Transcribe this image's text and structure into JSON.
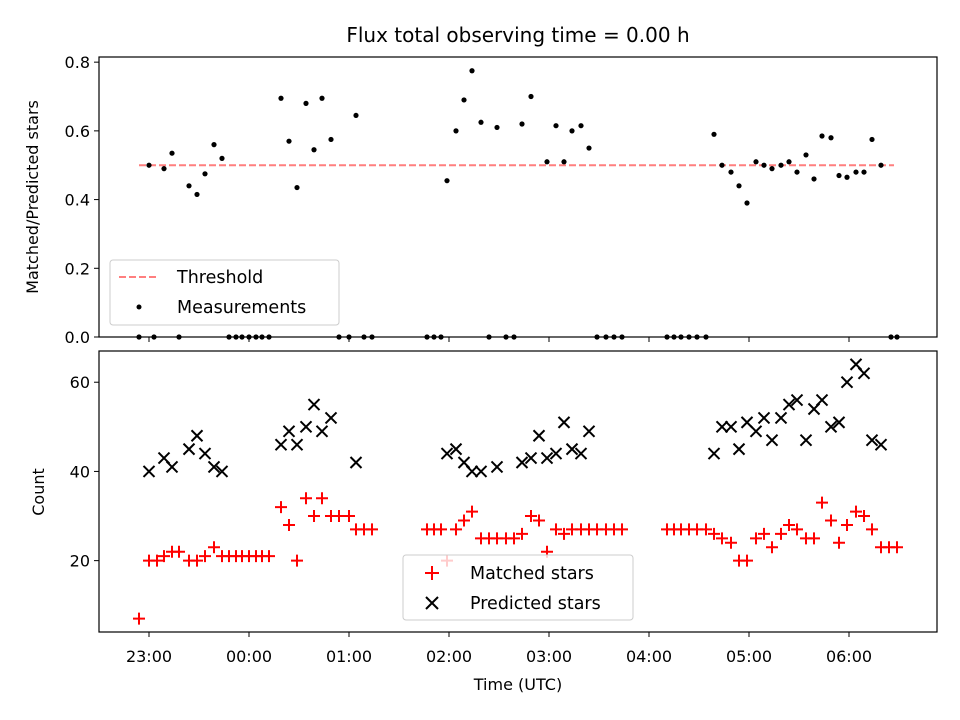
{
  "chart_data": [
    {
      "type": "scatter",
      "title": "Flux total observing time = 0.00 h",
      "xlabel": "",
      "ylabel": "Matched/Predicted stars",
      "xlim": [
        -0.5,
        7.88
      ],
      "ylim": [
        0,
        0.815
      ],
      "yticks": [
        0.0,
        0.2,
        0.4,
        0.6,
        0.8
      ],
      "yticklabels": [
        "0.0",
        "0.2",
        "0.4",
        "0.6",
        "0.8"
      ],
      "legend_position": "lower-left",
      "threshold": {
        "name": "Threshold",
        "value": 0.5,
        "x_range": [
          -0.1,
          7.45
        ],
        "color": "#ff7f7f"
      },
      "series": [
        {
          "name": "Measurements",
          "color": "#000000",
          "points": [
            [
              -0.1,
              0.0
            ],
            [
              0.0,
              0.5
            ],
            [
              0.05,
              0.0
            ],
            [
              0.15,
              0.49
            ],
            [
              0.23,
              0.535
            ],
            [
              0.3,
              0.0
            ],
            [
              0.4,
              0.44
            ],
            [
              0.48,
              0.415
            ],
            [
              0.56,
              0.475
            ],
            [
              0.65,
              0.56
            ],
            [
              0.73,
              0.52
            ],
            [
              0.8,
              0.0
            ],
            [
              0.87,
              0.0
            ],
            [
              0.93,
              0.0
            ],
            [
              1.0,
              0.0
            ],
            [
              1.07,
              0.0
            ],
            [
              1.13,
              0.0
            ],
            [
              1.2,
              0.0
            ],
            [
              1.32,
              0.695
            ],
            [
              1.4,
              0.57
            ],
            [
              1.48,
              0.435
            ],
            [
              1.57,
              0.68
            ],
            [
              1.65,
              0.545
            ],
            [
              1.73,
              0.695
            ],
            [
              1.82,
              0.575
            ],
            [
              1.9,
              0.0
            ],
            [
              2.0,
              0.0
            ],
            [
              2.07,
              0.645
            ],
            [
              2.15,
              0.0
            ],
            [
              2.23,
              0.0
            ],
            [
              2.78,
              0.0
            ],
            [
              2.85,
              0.0
            ],
            [
              2.92,
              0.0
            ],
            [
              2.98,
              0.455
            ],
            [
              3.07,
              0.6
            ],
            [
              3.15,
              0.69
            ],
            [
              3.23,
              0.775
            ],
            [
              3.32,
              0.625
            ],
            [
              3.4,
              0.0
            ],
            [
              3.48,
              0.61
            ],
            [
              3.57,
              0.0
            ],
            [
              3.65,
              0.0
            ],
            [
              3.73,
              0.62
            ],
            [
              3.82,
              0.7
            ],
            [
              3.98,
              0.51
            ],
            [
              4.07,
              0.615
            ],
            [
              4.15,
              0.51
            ],
            [
              4.23,
              0.6
            ],
            [
              4.32,
              0.615
            ],
            [
              4.4,
              0.55
            ],
            [
              4.48,
              0.0
            ],
            [
              4.57,
              0.0
            ],
            [
              4.65,
              0.0
            ],
            [
              4.73,
              0.0
            ],
            [
              5.18,
              0.0
            ],
            [
              5.25,
              0.0
            ],
            [
              5.32,
              0.0
            ],
            [
              5.4,
              0.0
            ],
            [
              5.48,
              0.0
            ],
            [
              5.57,
              0.0
            ],
            [
              5.65,
              0.59
            ],
            [
              5.73,
              0.5
            ],
            [
              5.82,
              0.48
            ],
            [
              5.9,
              0.44
            ],
            [
              5.98,
              0.39
            ],
            [
              6.07,
              0.51
            ],
            [
              6.15,
              0.5
            ],
            [
              6.23,
              0.49
            ],
            [
              6.32,
              0.5
            ],
            [
              6.4,
              0.51
            ],
            [
              6.48,
              0.48
            ],
            [
              6.57,
              0.53
            ],
            [
              6.65,
              0.46
            ],
            [
              6.73,
              0.585
            ],
            [
              6.82,
              0.58
            ],
            [
              6.9,
              0.47
            ],
            [
              6.98,
              0.465
            ],
            [
              7.07,
              0.48
            ],
            [
              7.15,
              0.48
            ],
            [
              7.23,
              0.575
            ],
            [
              7.32,
              0.5
            ],
            [
              7.42,
              0.0
            ],
            [
              7.48,
              0.0
            ]
          ]
        }
      ]
    },
    {
      "type": "scatter",
      "title": "",
      "xlabel": "Time (UTC)",
      "ylabel": "Count",
      "xlim": [
        -0.5,
        7.88
      ],
      "ylim": [
        4,
        67
      ],
      "yticks": [
        20,
        40,
        60
      ],
      "yticklabels": [
        "20",
        "40",
        "60"
      ],
      "xticks": [
        0,
        1,
        2,
        3,
        4,
        5,
        6,
        7
      ],
      "xticklabels": [
        "23:00",
        "00:00",
        "01:00",
        "02:00",
        "03:00",
        "04:00",
        "05:00",
        "06:00"
      ],
      "legend_position": "lower-center",
      "series": [
        {
          "name": "Matched stars",
          "color": "#ff0000",
          "marker": "plus",
          "points": [
            [
              -0.1,
              7
            ],
            [
              0.0,
              20
            ],
            [
              0.08,
              20
            ],
            [
              0.15,
              21
            ],
            [
              0.23,
              22
            ],
            [
              0.3,
              22
            ],
            [
              0.4,
              20
            ],
            [
              0.48,
              20
            ],
            [
              0.56,
              21
            ],
            [
              0.65,
              23
            ],
            [
              0.73,
              21
            ],
            [
              0.8,
              21
            ],
            [
              0.87,
              21
            ],
            [
              0.93,
              21
            ],
            [
              1.0,
              21
            ],
            [
              1.07,
              21
            ],
            [
              1.13,
              21
            ],
            [
              1.2,
              21
            ],
            [
              1.32,
              32
            ],
            [
              1.4,
              28
            ],
            [
              1.48,
              20
            ],
            [
              1.57,
              34
            ],
            [
              1.65,
              30
            ],
            [
              1.73,
              34
            ],
            [
              1.82,
              30
            ],
            [
              1.9,
              30
            ],
            [
              2.0,
              30
            ],
            [
              2.07,
              27
            ],
            [
              2.15,
              27
            ],
            [
              2.23,
              27
            ],
            [
              2.78,
              27
            ],
            [
              2.85,
              27
            ],
            [
              2.92,
              27
            ],
            [
              2.98,
              20
            ],
            [
              3.07,
              27
            ],
            [
              3.15,
              29
            ],
            [
              3.23,
              31
            ],
            [
              3.32,
              25
            ],
            [
              3.4,
              25
            ],
            [
              3.48,
              25
            ],
            [
              3.57,
              25
            ],
            [
              3.65,
              25
            ],
            [
              3.73,
              26
            ],
            [
              3.82,
              30
            ],
            [
              3.9,
              29
            ],
            [
              3.98,
              22
            ],
            [
              4.07,
              27
            ],
            [
              4.15,
              26
            ],
            [
              4.23,
              27
            ],
            [
              4.32,
              27
            ],
            [
              4.4,
              27
            ],
            [
              4.48,
              27
            ],
            [
              4.57,
              27
            ],
            [
              4.65,
              27
            ],
            [
              4.73,
              27
            ],
            [
              5.18,
              27
            ],
            [
              5.25,
              27
            ],
            [
              5.32,
              27
            ],
            [
              5.4,
              27
            ],
            [
              5.48,
              27
            ],
            [
              5.57,
              27
            ],
            [
              5.65,
              26
            ],
            [
              5.73,
              25
            ],
            [
              5.82,
              24
            ],
            [
              5.9,
              20
            ],
            [
              5.98,
              20
            ],
            [
              6.07,
              25
            ],
            [
              6.15,
              26
            ],
            [
              6.23,
              23
            ],
            [
              6.32,
              26
            ],
            [
              6.4,
              28
            ],
            [
              6.48,
              27
            ],
            [
              6.57,
              25
            ],
            [
              6.65,
              25
            ],
            [
              6.73,
              33
            ],
            [
              6.82,
              29
            ],
            [
              6.9,
              24
            ],
            [
              6.98,
              28
            ],
            [
              7.07,
              31
            ],
            [
              7.15,
              30
            ],
            [
              7.23,
              27
            ],
            [
              7.32,
              23
            ],
            [
              7.4,
              23
            ],
            [
              7.48,
              23
            ]
          ]
        },
        {
          "name": "Predicted stars",
          "color": "#000000",
          "marker": "x",
          "points": [
            [
              0.0,
              40
            ],
            [
              0.15,
              43
            ],
            [
              0.23,
              41
            ],
            [
              0.4,
              45
            ],
            [
              0.48,
              48
            ],
            [
              0.56,
              44
            ],
            [
              0.65,
              41
            ],
            [
              0.73,
              40
            ],
            [
              1.32,
              46
            ],
            [
              1.4,
              49
            ],
            [
              1.48,
              46
            ],
            [
              1.57,
              50
            ],
            [
              1.65,
              55
            ],
            [
              1.73,
              49
            ],
            [
              1.82,
              52
            ],
            [
              2.07,
              42
            ],
            [
              2.98,
              44
            ],
            [
              3.07,
              45
            ],
            [
              3.15,
              42
            ],
            [
              3.23,
              40
            ],
            [
              3.32,
              40
            ],
            [
              3.48,
              41
            ],
            [
              3.73,
              42
            ],
            [
              3.82,
              43
            ],
            [
              3.9,
              48
            ],
            [
              3.98,
              43
            ],
            [
              4.07,
              44
            ],
            [
              4.15,
              51
            ],
            [
              4.23,
              45
            ],
            [
              4.32,
              44
            ],
            [
              4.4,
              49
            ],
            [
              5.65,
              44
            ],
            [
              5.73,
              50
            ],
            [
              5.82,
              50
            ],
            [
              5.9,
              45
            ],
            [
              5.98,
              51
            ],
            [
              6.07,
              49
            ],
            [
              6.15,
              52
            ],
            [
              6.23,
              47
            ],
            [
              6.32,
              52
            ],
            [
              6.4,
              55
            ],
            [
              6.48,
              56
            ],
            [
              6.57,
              47
            ],
            [
              6.65,
              54
            ],
            [
              6.73,
              56
            ],
            [
              6.82,
              50
            ],
            [
              6.9,
              51
            ],
            [
              6.98,
              60
            ],
            [
              7.07,
              64
            ],
            [
              7.15,
              62
            ],
            [
              7.23,
              47
            ],
            [
              7.32,
              46
            ]
          ]
        }
      ]
    }
  ]
}
